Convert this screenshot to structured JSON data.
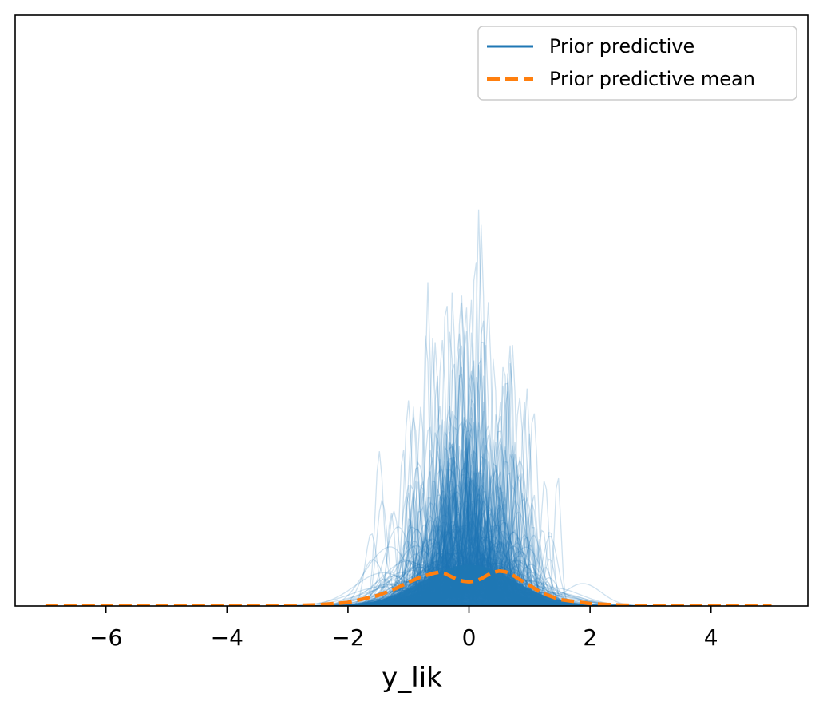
{
  "chart_data": {
    "type": "line",
    "xlabel": "y_lik",
    "ylabel": "",
    "xlim": [
      -7.5,
      5.6
    ],
    "ylim": [
      0,
      1.0
    ],
    "xticks": [
      -6,
      -4,
      -2,
      0,
      2,
      4
    ],
    "xtick_labels": [
      "−6",
      "−4",
      "−2",
      "0",
      "2",
      "4"
    ],
    "yticks_visible": false,
    "grid": false,
    "legend_position": "top-right",
    "series": [
      {
        "name": "Prior predictive",
        "style": "solid",
        "color": "#1f77b4",
        "description_count": 500
      },
      {
        "name": "Prior predictive mean",
        "style": "dashed",
        "color": "#ff7f0e",
        "x": [
          -7.0,
          -6.0,
          -5.0,
          -4.0,
          -3.0,
          -2.5,
          -2.0,
          -1.5,
          -1.2,
          -1.0,
          -0.8,
          -0.6,
          -0.5,
          -0.4,
          -0.3,
          -0.2,
          -0.1,
          0.0,
          0.1,
          0.2,
          0.3,
          0.4,
          0.5,
          0.6,
          0.7,
          0.8,
          1.0,
          1.2,
          1.5,
          2.0,
          2.5,
          3.0,
          4.0,
          5.0
        ],
        "y": [
          0,
          0,
          0,
          0,
          0.0005,
          0.002,
          0.006,
          0.018,
          0.03,
          0.04,
          0.049,
          0.055,
          0.057,
          0.055,
          0.05,
          0.045,
          0.042,
          0.041,
          0.042,
          0.046,
          0.052,
          0.057,
          0.059,
          0.058,
          0.054,
          0.047,
          0.035,
          0.022,
          0.011,
          0.004,
          0.0015,
          0.0005,
          0,
          0
        ]
      }
    ]
  }
}
